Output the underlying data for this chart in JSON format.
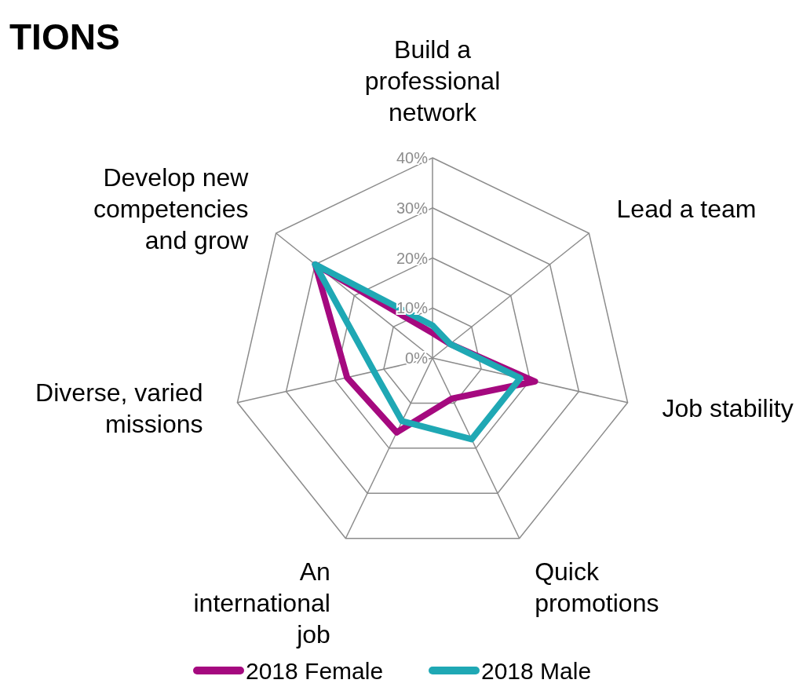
{
  "chart_data": {
    "type": "radar",
    "title": "TIONS",
    "categories": [
      "Build a professional network",
      "Lead a team",
      "Job stability",
      "Quick promotions",
      "An international job",
      "Diverse, varied missions",
      "Develop new competencies and grow"
    ],
    "series": [
      {
        "name": "2018 Female",
        "color": "#a5097f",
        "values": [
          5,
          4.5,
          21,
          9,
          16.5,
          17.5,
          30
        ]
      },
      {
        "name": "2018 Male",
        "color": "#1fa8b4",
        "values": [
          6.5,
          4.5,
          18,
          18,
          14,
          12,
          30
        ]
      }
    ],
    "ylim": [
      0,
      40
    ],
    "yticks": [
      {
        "value": 0,
        "label": "0%"
      },
      {
        "value": 10,
        "label": "10%"
      },
      {
        "value": 20,
        "label": "20%"
      },
      {
        "value": 30,
        "label": "30%"
      },
      {
        "value": 40,
        "label": "40%"
      }
    ],
    "grid": true,
    "legend": "bottom",
    "line_style": "solid",
    "marker": "none"
  }
}
